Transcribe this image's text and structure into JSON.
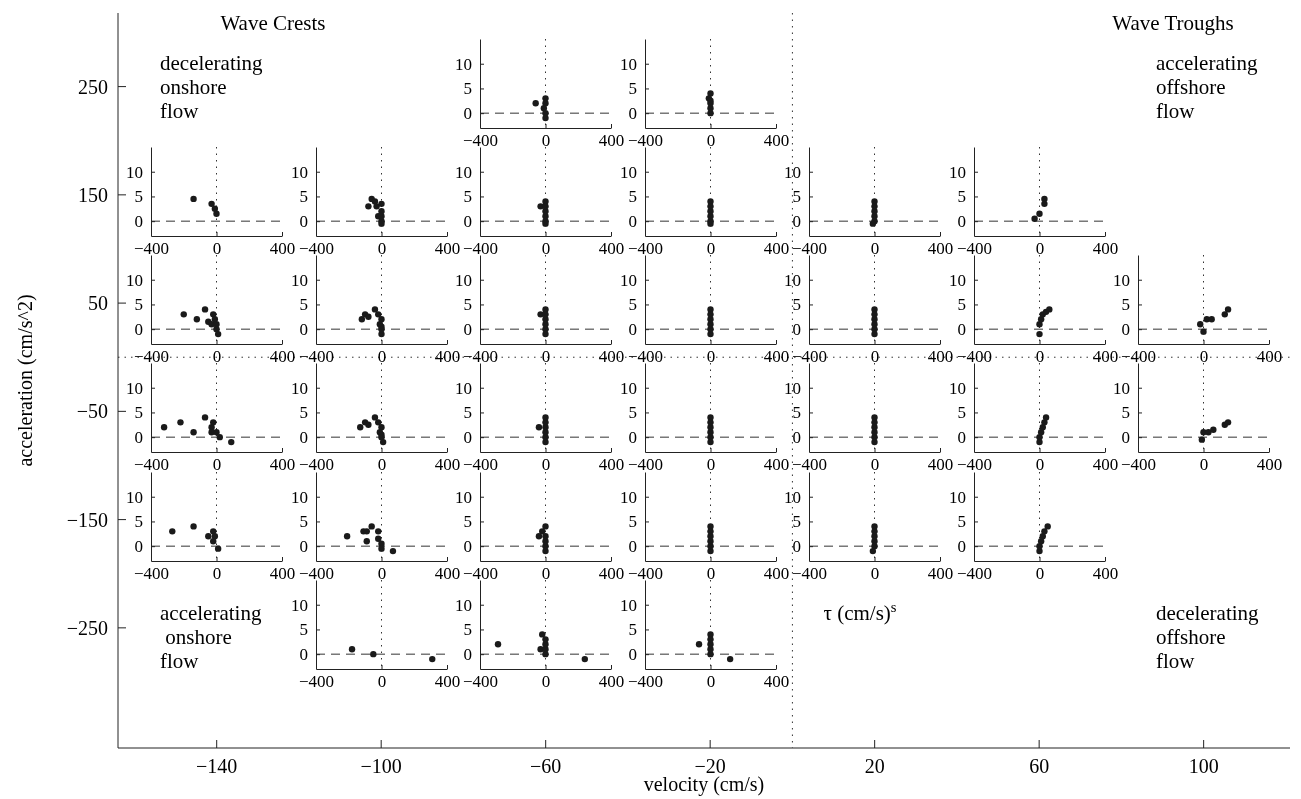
{
  "chart_data": [
    {
      "type": "scatter",
      "xlabel": "velocity (cm/s)",
      "ylabel": "acceleration (cm/s^2)",
      "xlim": [
        -164,
        121
      ],
      "ylim": [
        -361,
        318
      ],
      "xticks": [
        -140,
        -100,
        -60,
        -20,
        20,
        60,
        100
      ],
      "yticks": [
        250,
        150,
        50,
        -50,
        -150,
        -250
      ],
      "annotations": [
        "Wave Crests",
        "Wave Troughs",
        "decelerating\nonshore\nflow",
        "accelerating\noffshore\nflow",
        "accelerating\n onshore\nflow",
        "τ (cm/s)$^{s}$",
        "decelerating\noffshore\nflow"
      ],
      "ref_lines": [
        {
          "axis": "x",
          "value": 0,
          "line_style": "dotted"
        },
        {
          "axis": "y",
          "value": 0,
          "line_style": "dotted"
        }
      ]
    },
    {
      "type": "scatter",
      "marker": "circle",
      "color": "#1a1a1a",
      "xlim": [
        -400,
        400
      ],
      "ylim": [
        -3,
        15
      ],
      "xticks": [
        -400,
        0,
        400
      ],
      "yticks": [
        0,
        5,
        10
      ],
      "x": [
        -60,
        0,
        0,
        -10,
        0,
        0
      ],
      "values": [
        2,
        3,
        2,
        1,
        0,
        -1
      ],
      "ref_lines": [
        {
          "axis": "y",
          "value": 0,
          "line_style": "dashed"
        },
        {
          "axis": "x",
          "value": 0,
          "line_style": "dotted"
        }
      ]
    },
    {
      "type": "scatter",
      "marker": "circle",
      "color": "#1a1a1a",
      "xlim": [
        -400,
        400
      ],
      "ylim": [
        -3,
        15
      ],
      "xticks": [
        -400,
        0,
        400
      ],
      "yticks": [
        0,
        5,
        10
      ],
      "x": [
        0,
        -10,
        0,
        0,
        0,
        0
      ],
      "values": [
        4,
        3,
        2.5,
        2,
        1,
        0
      ],
      "ref_lines": [
        {
          "axis": "y",
          "value": 0,
          "line_style": "dashed"
        },
        {
          "axis": "x",
          "value": 0,
          "line_style": "dotted"
        }
      ]
    },
    {
      "type": "scatter",
      "marker": "circle",
      "color": "#1a1a1a",
      "xlim": [
        -400,
        400
      ],
      "ylim": [
        -3,
        15
      ],
      "xticks": [
        -400,
        0,
        400
      ],
      "yticks": [
        0,
        5,
        10
      ],
      "x": [
        -140,
        -30,
        -10,
        0
      ],
      "values": [
        4.5,
        3.5,
        2.5,
        1.5
      ],
      "ref_lines": [
        {
          "axis": "y",
          "value": 0,
          "line_style": "dashed"
        },
        {
          "axis": "x",
          "value": 0,
          "line_style": "dotted"
        }
      ]
    },
    {
      "type": "scatter",
      "marker": "circle",
      "color": "#1a1a1a",
      "xlim": [
        -400,
        400
      ],
      "ylim": [
        -3,
        15
      ],
      "xticks": [
        -400,
        0,
        400
      ],
      "yticks": [
        0,
        5,
        10
      ],
      "x": [
        -80,
        -60,
        -40,
        -30,
        0,
        0,
        -20,
        0,
        0,
        0
      ],
      "values": [
        3,
        4.5,
        4,
        3,
        3.5,
        2,
        1,
        1,
        0,
        -0.5
      ],
      "ref_lines": [
        {
          "axis": "y",
          "value": 0,
          "line_style": "dashed"
        },
        {
          "axis": "x",
          "value": 0,
          "line_style": "dotted"
        }
      ]
    },
    {
      "type": "scatter",
      "marker": "circle",
      "color": "#1a1a1a",
      "xlim": [
        -400,
        400
      ],
      "ylim": [
        -3,
        15
      ],
      "xticks": [
        -400,
        0,
        400
      ],
      "yticks": [
        0,
        5,
        10
      ],
      "x": [
        -30,
        0,
        0,
        0,
        0,
        0,
        0
      ],
      "values": [
        3,
        4,
        3,
        2,
        1,
        0,
        -0.5
      ],
      "ref_lines": [
        {
          "axis": "y",
          "value": 0,
          "line_style": "dashed"
        },
        {
          "axis": "x",
          "value": 0,
          "line_style": "dotted"
        }
      ]
    },
    {
      "type": "scatter",
      "marker": "circle",
      "color": "#1a1a1a",
      "xlim": [
        -400,
        400
      ],
      "ylim": [
        -3,
        15
      ],
      "xticks": [
        -400,
        0,
        400
      ],
      "yticks": [
        0,
        5,
        10
      ],
      "x": [
        0,
        0,
        0,
        0,
        0,
        0
      ],
      "values": [
        4,
        3,
        2,
        1,
        0,
        -0.5
      ],
      "ref_lines": [
        {
          "axis": "y",
          "value": 0,
          "line_style": "dashed"
        },
        {
          "axis": "x",
          "value": 0,
          "line_style": "dotted"
        }
      ]
    },
    {
      "type": "scatter",
      "marker": "circle",
      "color": "#1a1a1a",
      "xlim": [
        -400,
        400
      ],
      "ylim": [
        -3,
        15
      ],
      "xticks": [
        -400,
        0,
        400
      ],
      "yticks": [
        0,
        5,
        10
      ],
      "x": [
        0,
        0,
        0,
        0,
        0,
        -10
      ],
      "values": [
        4,
        3,
        2,
        1,
        0,
        -0.5
      ],
      "ref_lines": [
        {
          "axis": "y",
          "value": 0,
          "line_style": "dashed"
        },
        {
          "axis": "x",
          "value": 0,
          "line_style": "dotted"
        }
      ]
    },
    {
      "type": "scatter",
      "marker": "circle",
      "color": "#1a1a1a",
      "xlim": [
        -400,
        400
      ],
      "ylim": [
        -3,
        15
      ],
      "xticks": [
        -400,
        0,
        400
      ],
      "yticks": [
        0,
        5,
        10
      ],
      "x": [
        -30,
        0,
        30,
        30
      ],
      "values": [
        0.5,
        1.5,
        3.5,
        4.5
      ],
      "ref_lines": [
        {
          "axis": "y",
          "value": 0,
          "line_style": "dashed"
        },
        {
          "axis": "x",
          "value": 0,
          "line_style": "dotted"
        }
      ]
    },
    {
      "type": "scatter",
      "marker": "circle",
      "color": "#1a1a1a",
      "xlim": [
        -400,
        400
      ],
      "ylim": [
        -3,
        15
      ],
      "xticks": [
        -400,
        0,
        400
      ],
      "yticks": [
        0,
        5,
        10
      ],
      "x": [
        -200,
        -120,
        -70,
        -50,
        -30,
        -20,
        -10,
        0,
        0,
        10
      ],
      "values": [
        3,
        2,
        4,
        1.5,
        1,
        3,
        2,
        1,
        0,
        -1
      ],
      "ref_lines": [
        {
          "axis": "y",
          "value": 0,
          "line_style": "dashed"
        },
        {
          "axis": "x",
          "value": 0,
          "line_style": "dotted"
        }
      ]
    },
    {
      "type": "scatter",
      "marker": "circle",
      "color": "#1a1a1a",
      "xlim": [
        -400,
        400
      ],
      "ylim": [
        -3,
        15
      ],
      "xticks": [
        -400,
        0,
        400
      ],
      "yticks": [
        0,
        5,
        10
      ],
      "x": [
        -120,
        -100,
        -80,
        -40,
        -20,
        0,
        -10,
        0,
        0,
        0
      ],
      "values": [
        2,
        3,
        2.5,
        4,
        3,
        2,
        1,
        0.5,
        0,
        -1
      ],
      "ref_lines": [
        {
          "axis": "y",
          "value": 0,
          "line_style": "dashed"
        },
        {
          "axis": "x",
          "value": 0,
          "line_style": "dotted"
        }
      ]
    },
    {
      "type": "scatter",
      "marker": "circle",
      "color": "#1a1a1a",
      "xlim": [
        -400,
        400
      ],
      "ylim": [
        -3,
        15
      ],
      "xticks": [
        -400,
        0,
        400
      ],
      "yticks": [
        0,
        5,
        10
      ],
      "x": [
        -30,
        0,
        0,
        0,
        0,
        0,
        0
      ],
      "values": [
        3,
        4,
        3,
        2,
        1,
        0,
        -1
      ],
      "ref_lines": [
        {
          "axis": "y",
          "value": 0,
          "line_style": "dashed"
        },
        {
          "axis": "x",
          "value": 0,
          "line_style": "dotted"
        }
      ]
    },
    {
      "type": "scatter",
      "marker": "circle",
      "color": "#1a1a1a",
      "xlim": [
        -400,
        400
      ],
      "ylim": [
        -3,
        15
      ],
      "xticks": [
        -400,
        0,
        400
      ],
      "yticks": [
        0,
        5,
        10
      ],
      "x": [
        0,
        0,
        0,
        0,
        0,
        0
      ],
      "values": [
        4,
        3,
        2,
        1,
        0,
        -1
      ],
      "ref_lines": [
        {
          "axis": "y",
          "value": 0,
          "line_style": "dashed"
        },
        {
          "axis": "x",
          "value": 0,
          "line_style": "dotted"
        }
      ]
    },
    {
      "type": "scatter",
      "marker": "circle",
      "color": "#1a1a1a",
      "xlim": [
        -400,
        400
      ],
      "ylim": [
        -3,
        15
      ],
      "xticks": [
        -400,
        0,
        400
      ],
      "yticks": [
        0,
        5,
        10
      ],
      "x": [
        0,
        0,
        0,
        0,
        0,
        0
      ],
      "values": [
        4,
        3,
        2,
        1,
        0,
        -1
      ],
      "ref_lines": [
        {
          "axis": "y",
          "value": 0,
          "line_style": "dashed"
        },
        {
          "axis": "x",
          "value": 0,
          "line_style": "dotted"
        }
      ]
    },
    {
      "type": "scatter",
      "marker": "circle",
      "color": "#1a1a1a",
      "xlim": [
        -400,
        400
      ],
      "ylim": [
        -3,
        15
      ],
      "xticks": [
        -400,
        0,
        400
      ],
      "yticks": [
        0,
        5,
        10
      ],
      "x": [
        0,
        0,
        10,
        20,
        40,
        60
      ],
      "values": [
        -1,
        1,
        2,
        3,
        3.5,
        4
      ],
      "ref_lines": [
        {
          "axis": "y",
          "value": 0,
          "line_style": "dashed"
        },
        {
          "axis": "x",
          "value": 0,
          "line_style": "dotted"
        }
      ]
    },
    {
      "type": "scatter",
      "marker": "circle",
      "color": "#1a1a1a",
      "xlim": [
        -400,
        400
      ],
      "ylim": [
        -3,
        15
      ],
      "xticks": [
        -400,
        0,
        400
      ],
      "yticks": [
        0,
        5,
        10
      ],
      "x": [
        -20,
        0,
        20,
        50,
        130,
        150
      ],
      "values": [
        1,
        -0.5,
        2,
        2,
        3,
        4
      ],
      "ref_lines": [
        {
          "axis": "y",
          "value": 0,
          "line_style": "dashed"
        },
        {
          "axis": "x",
          "value": 0,
          "line_style": "dotted"
        }
      ]
    },
    {
      "type": "scatter",
      "marker": "circle",
      "color": "#1a1a1a",
      "xlim": [
        -400,
        400
      ],
      "ylim": [
        -3,
        15
      ],
      "xticks": [
        -400,
        0,
        400
      ],
      "yticks": [
        0,
        5,
        10
      ],
      "x": [
        -320,
        -220,
        -140,
        -70,
        -30,
        -20,
        -30,
        0,
        20,
        90
      ],
      "values": [
        2,
        3,
        1,
        4,
        2,
        3,
        1,
        1,
        0,
        -1
      ],
      "ref_lines": [
        {
          "axis": "y",
          "value": 0,
          "line_style": "dashed"
        },
        {
          "axis": "x",
          "value": 0,
          "line_style": "dotted"
        }
      ]
    },
    {
      "type": "scatter",
      "marker": "circle",
      "color": "#1a1a1a",
      "xlim": [
        -400,
        400
      ],
      "ylim": [
        -3,
        15
      ],
      "xticks": [
        -400,
        0,
        400
      ],
      "yticks": [
        0,
        5,
        10
      ],
      "x": [
        -130,
        -100,
        -80,
        -40,
        -20,
        0,
        -10,
        0,
        0,
        10
      ],
      "values": [
        2,
        3,
        2.5,
        4,
        3,
        2,
        1,
        0.5,
        0,
        -1
      ],
      "ref_lines": [
        {
          "axis": "y",
          "value": 0,
          "line_style": "dashed"
        },
        {
          "axis": "x",
          "value": 0,
          "line_style": "dotted"
        }
      ]
    },
    {
      "type": "scatter",
      "marker": "circle",
      "color": "#1a1a1a",
      "xlim": [
        -400,
        400
      ],
      "ylim": [
        -3,
        15
      ],
      "xticks": [
        -400,
        0,
        400
      ],
      "yticks": [
        0,
        5,
        10
      ],
      "x": [
        -40,
        0,
        0,
        0,
        0,
        0,
        0
      ],
      "values": [
        2,
        4,
        3,
        2,
        1,
        0,
        -1
      ],
      "ref_lines": [
        {
          "axis": "y",
          "value": 0,
          "line_style": "dashed"
        },
        {
          "axis": "x",
          "value": 0,
          "line_style": "dotted"
        }
      ]
    },
    {
      "type": "scatter",
      "marker": "circle",
      "color": "#1a1a1a",
      "xlim": [
        -400,
        400
      ],
      "ylim": [
        -3,
        15
      ],
      "xticks": [
        -400,
        0,
        400
      ],
      "yticks": [
        0,
        5,
        10
      ],
      "x": [
        0,
        0,
        0,
        0,
        0,
        0
      ],
      "values": [
        4,
        3,
        2,
        1,
        0,
        -1
      ],
      "ref_lines": [
        {
          "axis": "y",
          "value": 0,
          "line_style": "dashed"
        },
        {
          "axis": "x",
          "value": 0,
          "line_style": "dotted"
        }
      ]
    },
    {
      "type": "scatter",
      "marker": "circle",
      "color": "#1a1a1a",
      "xlim": [
        -400,
        400
      ],
      "ylim": [
        -3,
        15
      ],
      "xticks": [
        -400,
        0,
        400
      ],
      "yticks": [
        0,
        5,
        10
      ],
      "x": [
        0,
        0,
        0,
        0,
        0,
        0
      ],
      "values": [
        4,
        3,
        2,
        1,
        0,
        -1
      ],
      "ref_lines": [
        {
          "axis": "y",
          "value": 0,
          "line_style": "dashed"
        },
        {
          "axis": "x",
          "value": 0,
          "line_style": "dotted"
        }
      ]
    },
    {
      "type": "scatter",
      "marker": "circle",
      "color": "#1a1a1a",
      "xlim": [
        -400,
        400
      ],
      "ylim": [
        -3,
        15
      ],
      "xticks": [
        -400,
        0,
        400
      ],
      "yticks": [
        0,
        5,
        10
      ],
      "x": [
        0,
        0,
        10,
        20,
        30,
        40
      ],
      "values": [
        -1,
        0,
        1,
        2,
        3,
        4
      ],
      "ref_lines": [
        {
          "axis": "y",
          "value": 0,
          "line_style": "dashed"
        },
        {
          "axis": "x",
          "value": 0,
          "line_style": "dotted"
        }
      ]
    },
    {
      "type": "scatter",
      "marker": "circle",
      "color": "#1a1a1a",
      "xlim": [
        -400,
        400
      ],
      "ylim": [
        -3,
        15
      ],
      "xticks": [
        -400,
        0,
        400
      ],
      "yticks": [
        0,
        5,
        10
      ],
      "x": [
        0,
        -10,
        30,
        60,
        130,
        150
      ],
      "values": [
        1,
        -0.5,
        1,
        1.5,
        2.5,
        3
      ],
      "ref_lines": [
        {
          "axis": "y",
          "value": 0,
          "line_style": "dashed"
        },
        {
          "axis": "x",
          "value": 0,
          "line_style": "dotted"
        }
      ]
    },
    {
      "type": "scatter",
      "marker": "circle",
      "color": "#1a1a1a",
      "xlim": [
        -400,
        400
      ],
      "ylim": [
        -3,
        15
      ],
      "xticks": [
        -400,
        0,
        400
      ],
      "yticks": [
        0,
        5,
        10
      ],
      "x": [
        -270,
        -140,
        -50,
        -20,
        -10,
        -20,
        10
      ],
      "values": [
        3,
        4,
        2,
        3,
        2,
        1,
        -0.5
      ],
      "ref_lines": [
        {
          "axis": "y",
          "value": 0,
          "line_style": "dashed"
        },
        {
          "axis": "x",
          "value": 0,
          "line_style": "dotted"
        }
      ]
    },
    {
      "type": "scatter",
      "marker": "circle",
      "color": "#1a1a1a",
      "xlim": [
        -400,
        400
      ],
      "ylim": [
        -3,
        15
      ],
      "xticks": [
        -400,
        0,
        400
      ],
      "yticks": [
        0,
        5,
        10
      ],
      "x": [
        -210,
        -110,
        -90,
        -60,
        -90,
        -20,
        -20,
        0,
        0,
        70
      ],
      "values": [
        2,
        3,
        3,
        4,
        1,
        3,
        1.5,
        0.5,
        -0.5,
        -1
      ],
      "ref_lines": [
        {
          "axis": "y",
          "value": 0,
          "line_style": "dashed"
        },
        {
          "axis": "x",
          "value": 0,
          "line_style": "dotted"
        }
      ]
    },
    {
      "type": "scatter",
      "marker": "circle",
      "color": "#1a1a1a",
      "xlim": [
        -400,
        400
      ],
      "ylim": [
        -3,
        15
      ],
      "xticks": [
        -400,
        0,
        400
      ],
      "yticks": [
        0,
        5,
        10
      ],
      "x": [
        -40,
        -20,
        0,
        0,
        0,
        0,
        0
      ],
      "values": [
        2,
        3,
        4,
        2,
        1,
        0,
        -1
      ],
      "ref_lines": [
        {
          "axis": "y",
          "value": 0,
          "line_style": "dashed"
        },
        {
          "axis": "x",
          "value": 0,
          "line_style": "dotted"
        }
      ]
    },
    {
      "type": "scatter",
      "marker": "circle",
      "color": "#1a1a1a",
      "xlim": [
        -400,
        400
      ],
      "ylim": [
        -3,
        15
      ],
      "xticks": [
        -400,
        0,
        400
      ],
      "yticks": [
        0,
        5,
        10
      ],
      "x": [
        0,
        0,
        0,
        0,
        0,
        0
      ],
      "values": [
        4,
        3,
        2,
        1,
        0,
        -1
      ],
      "ref_lines": [
        {
          "axis": "y",
          "value": 0,
          "line_style": "dashed"
        },
        {
          "axis": "x",
          "value": 0,
          "line_style": "dotted"
        }
      ]
    },
    {
      "type": "scatter",
      "marker": "circle",
      "color": "#1a1a1a",
      "xlim": [
        -400,
        400
      ],
      "ylim": [
        -3,
        15
      ],
      "xticks": [
        -400,
        0,
        400
      ],
      "yticks": [
        0,
        5,
        10
      ],
      "x": [
        0,
        0,
        0,
        0,
        0,
        -10
      ],
      "values": [
        4,
        3,
        2,
        1,
        0,
        -1
      ],
      "ref_lines": [
        {
          "axis": "y",
          "value": 0,
          "line_style": "dashed"
        },
        {
          "axis": "x",
          "value": 0,
          "line_style": "dotted"
        }
      ]
    },
    {
      "type": "scatter",
      "marker": "circle",
      "color": "#1a1a1a",
      "xlim": [
        -400,
        400
      ],
      "ylim": [
        -3,
        15
      ],
      "xticks": [
        -400,
        0,
        400
      ],
      "yticks": [
        0,
        5,
        10
      ],
      "x": [
        0,
        0,
        10,
        20,
        30,
        50
      ],
      "values": [
        -1,
        0,
        1,
        2,
        3,
        4
      ],
      "ref_lines": [
        {
          "axis": "y",
          "value": 0,
          "line_style": "dashed"
        },
        {
          "axis": "x",
          "value": 0,
          "line_style": "dotted"
        }
      ]
    },
    {
      "type": "scatter",
      "marker": "circle",
      "color": "#1a1a1a",
      "xlim": [
        -400,
        400
      ],
      "ylim": [
        -3,
        15
      ],
      "xticks": [
        -400,
        0,
        400
      ],
      "yticks": [
        0,
        5,
        10
      ],
      "x": [
        -180,
        -50,
        310
      ],
      "values": [
        1,
        0,
        -1
      ],
      "ref_lines": [
        {
          "axis": "y",
          "value": 0,
          "line_style": "dashed"
        },
        {
          "axis": "x",
          "value": 0,
          "line_style": "dotted"
        }
      ]
    },
    {
      "type": "scatter",
      "marker": "circle",
      "color": "#1a1a1a",
      "xlim": [
        -400,
        400
      ],
      "ylim": [
        -3,
        15
      ],
      "xticks": [
        -400,
        0,
        400
      ],
      "yticks": [
        0,
        5,
        10
      ],
      "x": [
        -290,
        -30,
        -20,
        0,
        0,
        0,
        0,
        240
      ],
      "values": [
        2,
        1,
        4,
        3,
        2,
        1,
        0,
        -1
      ],
      "ref_lines": [
        {
          "axis": "y",
          "value": 0,
          "line_style": "dashed"
        },
        {
          "axis": "x",
          "value": 0,
          "line_style": "dotted"
        }
      ]
    },
    {
      "type": "scatter",
      "marker": "circle",
      "color": "#1a1a1a",
      "xlim": [
        -400,
        400
      ],
      "ylim": [
        -3,
        15
      ],
      "xticks": [
        -400,
        0,
        400
      ],
      "yticks": [
        0,
        5,
        10
      ],
      "x": [
        -70,
        0,
        0,
        0,
        0,
        0,
        120
      ],
      "values": [
        2,
        4,
        3,
        2,
        1,
        0,
        -1
      ],
      "ref_lines": [
        {
          "axis": "y",
          "value": 0,
          "line_style": "dashed"
        },
        {
          "axis": "x",
          "value": 0,
          "line_style": "dotted"
        }
      ]
    }
  ]
}
